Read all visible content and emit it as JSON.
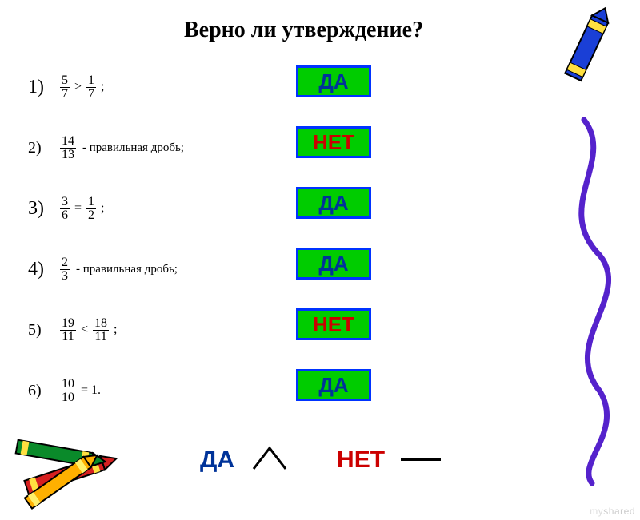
{
  "title": "Верно ли утверждение?",
  "questions": [
    {
      "n": "1)",
      "f1_num": "5",
      "f1_den": "7",
      "op": ">",
      "f2_num": "1",
      "f2_den": "7",
      "tail": ";",
      "suffix": "",
      "size": "lg"
    },
    {
      "n": "2)",
      "f1_num": "14",
      "f1_den": "13",
      "op": "",
      "f2_num": "",
      "f2_den": "",
      "tail": "",
      "suffix": "- правильная дробь;",
      "size": "sm"
    },
    {
      "n": "3)",
      "f1_num": "3",
      "f1_den": "6",
      "op": "=",
      "f2_num": "1",
      "f2_den": "2",
      "tail": ";",
      "suffix": "",
      "size": "lg"
    },
    {
      "n": "4)",
      "f1_num": "2",
      "f1_den": "3",
      "op": "",
      "f2_num": "",
      "f2_den": "",
      "tail": "",
      "suffix": "- правильная дробь;",
      "size": "lg"
    },
    {
      "n": "5)",
      "f1_num": "19",
      "f1_den": "11",
      "op": "<",
      "f2_num": "18",
      "f2_den": "11",
      "tail": ";",
      "suffix": "",
      "size": "sm"
    },
    {
      "n": "6)",
      "f1_num": "10",
      "f1_den": "10",
      "op": "=",
      "f2_num": "",
      "f2_den": "",
      "tail": "1.",
      "suffix": "",
      "size": "sm"
    }
  ],
  "answers": [
    {
      "text": "ДА",
      "cls": "ans-yes"
    },
    {
      "text": "НЕТ",
      "cls": "ans-no"
    },
    {
      "text": "ДА",
      "cls": "ans-yes"
    },
    {
      "text": "ДА",
      "cls": "ans-yes"
    },
    {
      "text": "НЕТ",
      "cls": "ans-no"
    },
    {
      "text": "ДА",
      "cls": "ans-yes"
    }
  ],
  "legend": {
    "yes": "ДА",
    "no": "НЕТ"
  },
  "watermark": {
    "prefix": "my",
    "rest": "shared"
  },
  "colors": {
    "box_bg": "#00cc00",
    "box_border": "#0033ff",
    "yes_text": "#003399",
    "no_text": "#cc0000",
    "crayon_blue": "#1a3fd6",
    "crayon_red": "#d62020",
    "crayon_green": "#0a8a2a",
    "crayon_yellow": "#ffb000",
    "squiggle": "#5522cc"
  }
}
